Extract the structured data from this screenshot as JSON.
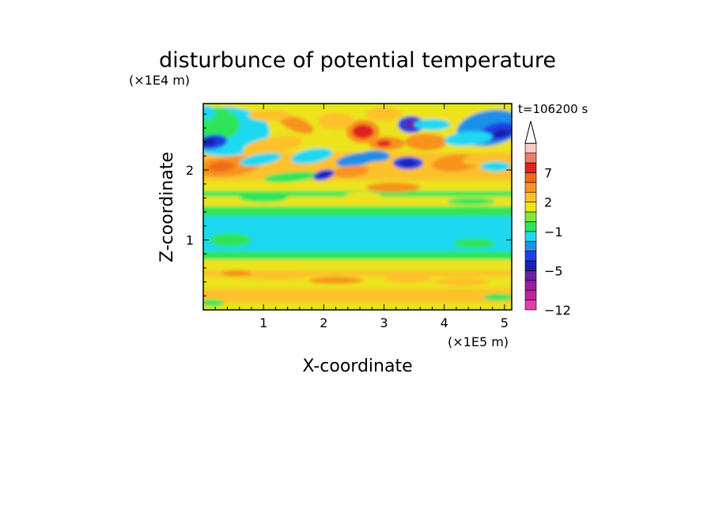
{
  "chart_data": {
    "type": "heatmap",
    "title": "disturbunce of potential temperature",
    "xlabel": "X-coordinate",
    "ylabel": "Z-coordinate",
    "x_scale_label": "(×1E5 m)",
    "y_scale_label": "(×1E4 m)",
    "time_label": "t=106200 s",
    "xlim": [
      0,
      5.12
    ],
    "ylim": [
      0,
      2.95
    ],
    "x_ticks": [
      "1",
      "2",
      "3",
      "4",
      "5"
    ],
    "y_ticks": [
      "1",
      "2"
    ],
    "colorbar": {
      "tick_labels": [
        "7",
        "2",
        "−1",
        "−5",
        "−12"
      ],
      "levels": [
        -12,
        -10,
        -8,
        -7,
        -5,
        -4,
        -3,
        -2,
        -1,
        0,
        1,
        2,
        3,
        5,
        7,
        8,
        9
      ],
      "colors": [
        "#e23fa7",
        "#c51f9b",
        "#9b1c9e",
        "#6b1fa5",
        "#1a1fb0",
        "#1f3fe6",
        "#1f8fe8",
        "#1fd8f0",
        "#2de55a",
        "#7ee83a",
        "#ece31c",
        "#fcc12a",
        "#f7921c",
        "#f06a18",
        "#e0241c",
        "#f07a66",
        "#f8c9bf"
      ],
      "extend": "max"
    },
    "features": [
      {
        "x": 2.65,
        "z": 2.55,
        "value": 6
      },
      {
        "x": 3.45,
        "z": 2.65,
        "value": -8
      },
      {
        "x": 3.4,
        "z": 2.1,
        "value": -5
      },
      {
        "x": 2.5,
        "z": 1.95,
        "value": 5
      },
      {
        "x": 2.0,
        "z": 1.9,
        "value": -5
      },
      {
        "x": 2.85,
        "z": 2.2,
        "value": -3
      },
      {
        "x": 3.05,
        "z": 2.35,
        "value": 4
      },
      {
        "x": 3.7,
        "z": 2.4,
        "value": 3
      },
      {
        "x": 4.95,
        "z": 2.55,
        "value": -6
      },
      {
        "x": 0.1,
        "z": 2.4,
        "value": -5
      },
      {
        "x": 0.3,
        "z": 2.05,
        "value": 4
      },
      {
        "x": 4.25,
        "z": 2.1,
        "value": 3
      },
      {
        "x": 2.6,
        "z": 1.4,
        "value": -1
      }
    ]
  }
}
